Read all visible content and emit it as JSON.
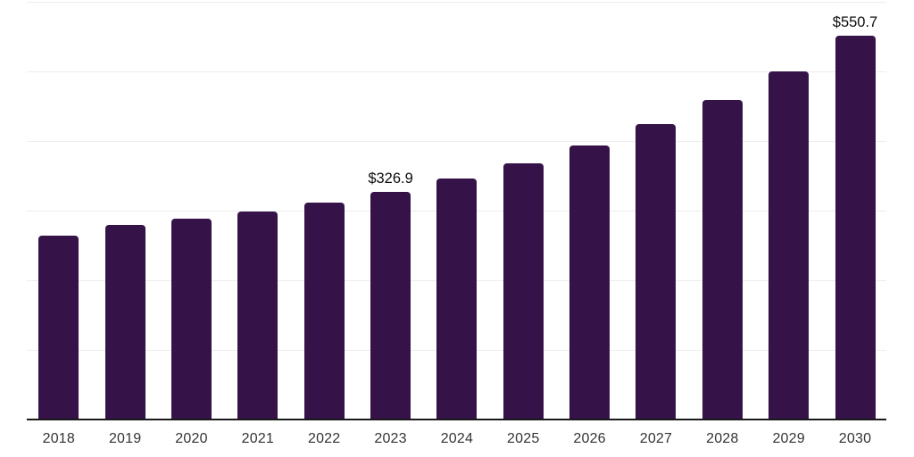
{
  "chart_data": {
    "type": "bar",
    "title": "",
    "xlabel": "",
    "ylabel": "",
    "categories": [
      "2018",
      "2019",
      "2020",
      "2021",
      "2022",
      "2023",
      "2024",
      "2025",
      "2026",
      "2027",
      "2028",
      "2029",
      "2030"
    ],
    "values": [
      264,
      279,
      288,
      299,
      311,
      326.9,
      346,
      367.5,
      393,
      424,
      459.5,
      500.5,
      550.7
    ],
    "data_labels": [
      {
        "category": "2023",
        "text": "$326.9"
      },
      {
        "category": "2030",
        "text": "$550.7"
      }
    ],
    "ylim": [
      0,
      600
    ],
    "gridline_interval": 100,
    "grid": true,
    "legend_position": "none",
    "y_axis_tick_labels_visible": false
  },
  "colors": {
    "background": "#ffffff",
    "bar": "#351348",
    "gridline": "#ededed",
    "axis_line": "#1a1a1a",
    "tick_label": "#333333",
    "data_label": "#0d0d0d"
  }
}
